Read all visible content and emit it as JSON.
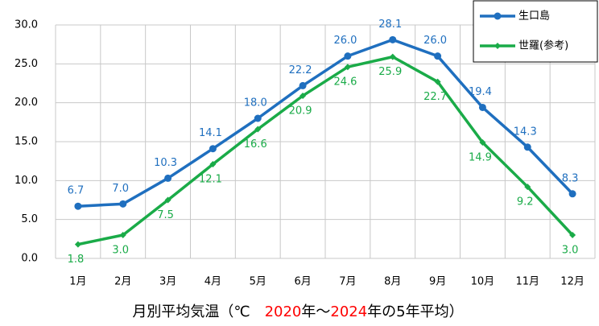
{
  "chart_data": {
    "type": "line",
    "title": [
      {
        "text": "月別平均気温（℃　",
        "color": "#000000"
      },
      {
        "text": "2020",
        "color": "#ff0000"
      },
      {
        "text": "年～",
        "color": "#000000"
      },
      {
        "text": "2024",
        "color": "#ff0000"
      },
      {
        "text": "年の5年平均）",
        "color": "#000000"
      }
    ],
    "categories": [
      "1月",
      "2月",
      "3月",
      "4月",
      "5月",
      "6月",
      "7月",
      "8月",
      "9月",
      "10月",
      "11月",
      "12月"
    ],
    "series": [
      {
        "name": "生口島",
        "color": "#1f6fbf",
        "marker": "circle",
        "values": [
          6.7,
          7.0,
          10.3,
          14.1,
          18.0,
          22.2,
          26.0,
          28.1,
          26.0,
          19.4,
          14.3,
          8.3
        ],
        "value_labels": [
          "6.7",
          "7.0",
          "10.3",
          "14.1",
          "18.0",
          "22.2",
          "26.0",
          "28.1",
          "26.0",
          "19.4",
          "14.3",
          "8.3"
        ]
      },
      {
        "name": "世羅(参考)",
        "color": "#1aab48",
        "marker": "diamond",
        "values": [
          1.8,
          3.0,
          7.5,
          12.1,
          16.6,
          20.9,
          24.6,
          25.9,
          22.7,
          14.9,
          9.2,
          3.0
        ],
        "value_labels": [
          "1.8",
          "3.0",
          "7.5",
          "12.1",
          "16.6",
          "20.9",
          "24.6",
          "25.9",
          "22.7",
          "14.9",
          "9.2",
          "3.0"
        ]
      }
    ],
    "ylim": [
      0,
      30
    ],
    "yticks": [
      {
        "value": 0,
        "label": "0.0"
      },
      {
        "value": 5,
        "label": "5.0"
      },
      {
        "value": 10,
        "label": "10.0"
      },
      {
        "value": 15,
        "label": "15.0"
      },
      {
        "value": 20,
        "label": "20.0"
      },
      {
        "value": 25,
        "label": "25.0"
      },
      {
        "value": 30,
        "label": "30.0"
      }
    ],
    "grid": true,
    "legend": "top-right"
  }
}
